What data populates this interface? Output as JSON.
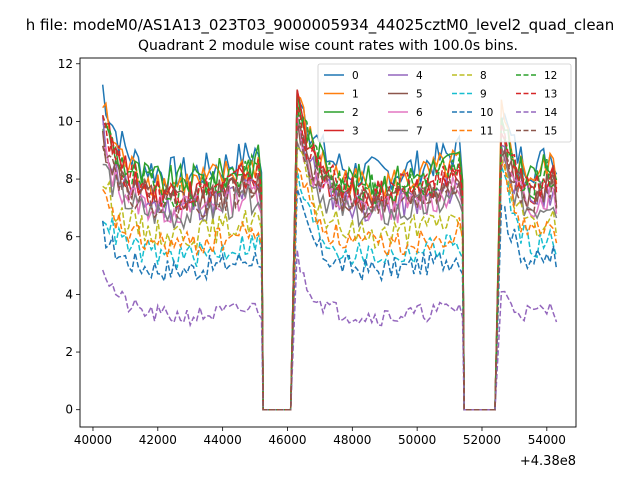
{
  "chart_data": {
    "type": "line",
    "suptitle": "h file: modeM0/AS1A13_023T03_9000005934_44025cztM0_level2_quad_clean",
    "title": "Quadrant 2 module wise count rates with 100.0s bins.",
    "xlabel": "",
    "ylabel": "",
    "x_offset_label": "+4.38e8",
    "xlim": [
      39600,
      54900
    ],
    "ylim": [
      -0.6,
      12.2
    ],
    "x_ticks": [
      40000,
      42000,
      44000,
      46000,
      48000,
      50000,
      52000,
      54000
    ],
    "y_ticks": [
      0,
      2,
      4,
      6,
      8,
      10,
      12
    ],
    "x_tick_labels": [
      "40000",
      "42000",
      "44000",
      "46000",
      "48000",
      "50000",
      "52000",
      "54000"
    ],
    "y_tick_labels": [
      "0",
      "2",
      "4",
      "6",
      "8",
      "10",
      "12"
    ],
    "legend_position": "top-right",
    "segments": [
      {
        "start": 40300,
        "end": 45200,
        "gap_end": 45300
      },
      {
        "start": 46300,
        "end": 51400,
        "gap_end": 51500
      },
      {
        "start": 52600,
        "end": 54300
      }
    ],
    "series": [
      {
        "name": "0",
        "color": "#1f77b4",
        "dash": "solid",
        "level": 8.6,
        "seg_start": [
          11.2,
          11.5,
          10.4
        ]
      },
      {
        "name": "1",
        "color": "#ff7f0e",
        "dash": "solid",
        "level": 8.2,
        "seg_start": [
          10.6,
          11.0,
          10.2
        ]
      },
      {
        "name": "2",
        "color": "#2ca02c",
        "dash": "solid",
        "level": 8.3,
        "seg_start": [
          10.0,
          10.9,
          9.8
        ]
      },
      {
        "name": "3",
        "color": "#d62728",
        "dash": "solid",
        "level": 7.8,
        "seg_start": [
          10.4,
          10.6,
          9.5
        ]
      },
      {
        "name": "4",
        "color": "#9467bd",
        "dash": "solid",
        "level": 7.4,
        "seg_start": [
          9.7,
          10.3,
          9.3
        ]
      },
      {
        "name": "5",
        "color": "#8c564b",
        "dash": "solid",
        "level": 7.6,
        "seg_start": [
          9.4,
          10.2,
          9.1
        ]
      },
      {
        "name": "6",
        "color": "#e377c2",
        "dash": "solid",
        "level": 7.3,
        "seg_start": [
          9.0,
          10.0,
          8.9
        ]
      },
      {
        "name": "7",
        "color": "#7f7f7f",
        "dash": "solid",
        "level": 7.1,
        "seg_start": [
          8.6,
          9.8,
          8.8
        ]
      },
      {
        "name": "8",
        "color": "#bcbd22",
        "dash": "dashed",
        "level": 6.4,
        "seg_start": [
          8.0,
          9.3,
          8.6
        ]
      },
      {
        "name": "9",
        "color": "#17becf",
        "dash": "dashed",
        "level": 5.6,
        "seg_start": [
          6.9,
          8.3,
          8.5
        ]
      },
      {
        "name": "10",
        "color": "#1f77b4",
        "dash": "dashed",
        "level": 5.1,
        "seg_start": [
          6.2,
          7.4,
          7.3
        ]
      },
      {
        "name": "11",
        "color": "#ff7f0e",
        "dash": "dashed",
        "level": 6.0,
        "seg_start": [
          7.4,
          8.8,
          8.9
        ]
      },
      {
        "name": "12",
        "color": "#2ca02c",
        "dash": "dashed",
        "level": 8.0,
        "seg_start": [
          10.1,
          10.8,
          9.6
        ]
      },
      {
        "name": "13",
        "color": "#d62728",
        "dash": "dashed",
        "level": 7.9,
        "seg_start": [
          10.3,
          10.5,
          9.7
        ]
      },
      {
        "name": "14",
        "color": "#9467bd",
        "dash": "dashed",
        "level": 3.4,
        "seg_start": [
          5.0,
          5.3,
          4.1
        ]
      },
      {
        "name": "15",
        "color": "#8c564b",
        "dash": "dashed",
        "level": 7.5,
        "seg_start": [
          9.6,
          10.1,
          9.0
        ]
      }
    ]
  }
}
